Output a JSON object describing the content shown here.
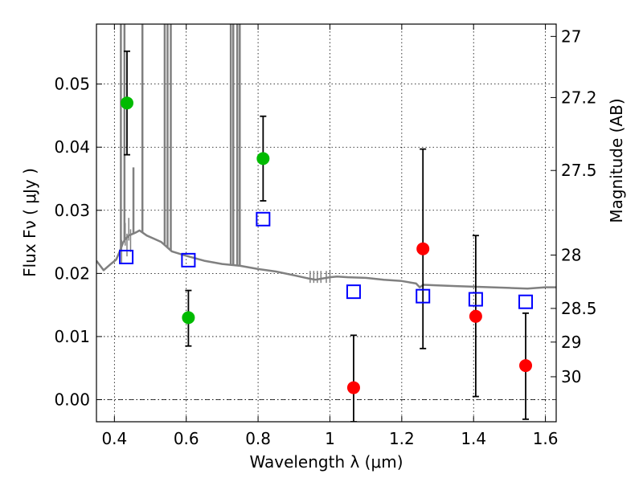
{
  "chart_data": {
    "type": "scatter",
    "xlabel": "Wavelength  λ (μm)",
    "ylabel_left": "Flux  Fν  ( μJy )",
    "ylabel_right": "Magnitude (AB)",
    "xlim": [
      0.35,
      1.63
    ],
    "ylim": [
      -0.0035,
      0.0595
    ],
    "grid": true,
    "x_ticks": [
      {
        "value": 0.4,
        "label": "0.4"
      },
      {
        "value": 0.6,
        "label": "0.6"
      },
      {
        "value": 0.8,
        "label": "0.8"
      },
      {
        "value": 1.0,
        "label": "1"
      },
      {
        "value": 1.2,
        "label": "1.2"
      },
      {
        "value": 1.4,
        "label": "1.4"
      },
      {
        "value": 1.6,
        "label": "1.6"
      }
    ],
    "y_ticks": [
      {
        "value": 0.0,
        "label": "0.00"
      },
      {
        "value": 0.01,
        "label": "0.01"
      },
      {
        "value": 0.02,
        "label": "0.02"
      },
      {
        "value": 0.03,
        "label": "0.03"
      },
      {
        "value": 0.04,
        "label": "0.04"
      },
      {
        "value": 0.05,
        "label": "0.05"
      }
    ],
    "right_ticks": [
      {
        "mag": 27,
        "label": "27"
      },
      {
        "mag": 27.2,
        "label": "27.2"
      },
      {
        "mag": 27.5,
        "label": "27.5"
      },
      {
        "mag": 28,
        "label": "28"
      },
      {
        "mag": 28.5,
        "label": "28.5"
      },
      {
        "mag": 29,
        "label": "29"
      },
      {
        "mag": 30,
        "label": "30"
      }
    ],
    "colors": {
      "green": "#00bb00",
      "red": "#ff0000",
      "model_box": "#0000ff",
      "sed": "#808080",
      "error": "#000000"
    },
    "series": [
      {
        "marker": "circle",
        "color": "green",
        "points": [
          {
            "x": 0.435,
            "y": 0.047,
            "ylo": 0.0388,
            "yhi": 0.0552
          },
          {
            "x": 0.606,
            "y": 0.013,
            "ylo": 0.0085,
            "yhi": 0.0173
          },
          {
            "x": 0.814,
            "y": 0.0382,
            "ylo": 0.0315,
            "yhi": 0.0449
          }
        ]
      },
      {
        "marker": "circle",
        "color": "red",
        "points": [
          {
            "x": 1.066,
            "y": 0.0019,
            "ylo": -0.0035,
            "yhi": 0.0102
          },
          {
            "x": 1.259,
            "y": 0.0239,
            "ylo": 0.0081,
            "yhi": 0.0397
          },
          {
            "x": 1.406,
            "y": 0.0132,
            "ylo": 0.0005,
            "yhi": 0.026
          },
          {
            "x": 1.545,
            "y": 0.0054,
            "ylo": -0.0031,
            "yhi": 0.0137
          }
        ]
      },
      {
        "marker": "square",
        "color": "model_box",
        "points": [
          {
            "x": 0.433,
            "y": 0.0226
          },
          {
            "x": 0.606,
            "y": 0.0221
          },
          {
            "x": 0.814,
            "y": 0.0286
          },
          {
            "x": 1.066,
            "y": 0.0171
          },
          {
            "x": 1.259,
            "y": 0.0164
          },
          {
            "x": 1.406,
            "y": 0.0159
          },
          {
            "x": 1.545,
            "y": 0.0155
          }
        ]
      }
    ],
    "sed_continuum": [
      [
        0.35,
        0.022
      ],
      [
        0.37,
        0.0205
      ],
      [
        0.39,
        0.0215
      ],
      [
        0.405,
        0.0222
      ],
      [
        0.415,
        0.0235
      ],
      [
        0.425,
        0.025
      ],
      [
        0.432,
        0.0255
      ],
      [
        0.44,
        0.026
      ],
      [
        0.46,
        0.0265
      ],
      [
        0.47,
        0.0268
      ],
      [
        0.49,
        0.026
      ],
      [
        0.51,
        0.0255
      ],
      [
        0.53,
        0.025
      ],
      [
        0.56,
        0.0235
      ],
      [
        0.6,
        0.0228
      ],
      [
        0.65,
        0.022
      ],
      [
        0.7,
        0.0215
      ],
      [
        0.75,
        0.0212
      ],
      [
        0.8,
        0.0207
      ],
      [
        0.85,
        0.0203
      ],
      [
        0.9,
        0.0197
      ],
      [
        0.94,
        0.0192
      ],
      [
        0.96,
        0.019
      ],
      [
        0.98,
        0.0192
      ],
      [
        1.0,
        0.0194
      ],
      [
        1.02,
        0.0195
      ],
      [
        1.05,
        0.0194
      ],
      [
        1.1,
        0.0193
      ],
      [
        1.15,
        0.019
      ],
      [
        1.2,
        0.0188
      ],
      [
        1.24,
        0.0184
      ],
      [
        1.25,
        0.0178
      ],
      [
        1.26,
        0.0182
      ],
      [
        1.3,
        0.0181
      ],
      [
        1.35,
        0.018
      ],
      [
        1.4,
        0.0179
      ],
      [
        1.45,
        0.0178
      ],
      [
        1.5,
        0.0177
      ],
      [
        1.55,
        0.0176
      ],
      [
        1.6,
        0.0178
      ],
      [
        1.63,
        0.0178
      ]
    ],
    "sed_spikes": [
      {
        "x": 0.418,
        "top": 0.0595
      },
      {
        "x": 0.428,
        "top": 0.0595
      },
      {
        "x": 0.453,
        "top": 0.0368
      },
      {
        "x": 0.478,
        "top": 0.0595
      },
      {
        "x": 0.54,
        "top": 0.0595
      },
      {
        "x": 0.548,
        "top": 0.0595
      },
      {
        "x": 0.557,
        "top": 0.0595
      },
      {
        "x": 0.724,
        "top": 0.0595
      },
      {
        "x": 0.731,
        "top": 0.0595
      },
      {
        "x": 0.742,
        "top": 0.0595
      },
      {
        "x": 0.749,
        "top": 0.0595
      }
    ]
  }
}
